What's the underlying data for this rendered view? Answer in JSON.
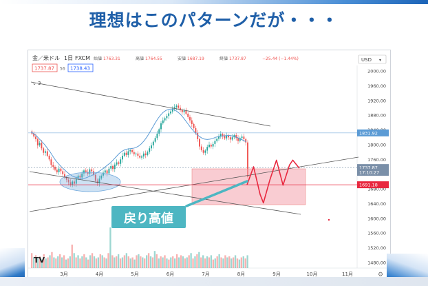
{
  "headline": "理想はこのパターンだが・・・",
  "chart_header": {
    "symbol": "金／米ドル",
    "timeframe": "1日",
    "source": "FXCM",
    "ohlc": [
      {
        "label": "始値",
        "value": "1763.31"
      },
      {
        "label": "高値",
        "value": "1764.55"
      },
      {
        "label": "安値",
        "value": "1687.19"
      },
      {
        "label": "終値",
        "value": "1737.87"
      }
    ],
    "change": "−25.44 (−1.44%)",
    "bid": "1737.87",
    "spread": "56",
    "ask": "1738.43",
    "indicator_label": "3",
    "currency": "USD"
  },
  "annotation": {
    "label": "戻り高値",
    "label_bg": "#4db6c2",
    "box_color": "#f4a3ad",
    "projection_color": "#e8283f"
  },
  "colors": {
    "up_candle": "#26a69a",
    "down_candle": "#ef5350",
    "moving_average": "#5b9bd5",
    "ellipse": "#6fa8dc",
    "trendline": "#555555",
    "price_badge": "#7a8fa8"
  },
  "chart_data": {
    "type": "candlestick",
    "x_tick_labels": [
      "3月",
      "4月",
      "5月",
      "6月",
      "7月",
      "8月",
      "9月",
      "10月",
      "11月"
    ],
    "y_tick_labels": [
      "2000.00",
      "1960.00",
      "1920.00",
      "1880.00",
      "1840.00",
      "1800.00",
      "1760.00",
      "1720.00",
      "1680.00",
      "1640.00",
      "1600.00",
      "1560.00",
      "1520.00",
      "1480.00"
    ],
    "ylim": [
      1465,
      2015
    ],
    "price_labels": [
      {
        "value": "1831.92",
        "price": 1831.92,
        "color": "#5b9bd5"
      },
      {
        "value": "1737.87",
        "price": 1737.87,
        "color": "#7a8fa8"
      },
      {
        "value": "17:10:27",
        "price": 1725,
        "color": "#7a8fa8"
      },
      {
        "value": "1691.18",
        "price": 1691.18,
        "color": "#e8283f"
      }
    ],
    "close_series": [
      1830,
      1822,
      1815,
      1798,
      1805,
      1790,
      1778,
      1782,
      1770,
      1760,
      1745,
      1740,
      1732,
      1725,
      1735,
      1728,
      1720,
      1712,
      1705,
      1698,
      1690,
      1700,
      1694,
      1708,
      1716,
      1711,
      1722,
      1730,
      1726,
      1721,
      1733,
      1728,
      1718,
      1702,
      1695,
      1708,
      1716,
      1724,
      1730,
      1722,
      1735,
      1742,
      1734,
      1746,
      1752,
      1748,
      1760,
      1770,
      1778,
      1772,
      1782,
      1785,
      1780,
      1774,
      1776,
      1770,
      1765,
      1768,
      1776,
      1772,
      1780,
      1790,
      1798,
      1808,
      1818,
      1830,
      1842,
      1858,
      1866,
      1872,
      1878,
      1885,
      1890,
      1898,
      1902,
      1906,
      1900,
      1894,
      1888,
      1892,
      1884,
      1875,
      1866,
      1856,
      1845,
      1832,
      1815,
      1795,
      1785,
      1778,
      1784,
      1794,
      1800,
      1795,
      1802,
      1810,
      1816,
      1823,
      1829,
      1823,
      1817,
      1825,
      1820,
      1814,
      1820,
      1826,
      1818,
      1810,
      1818,
      1822,
      1815,
      1806,
      1712
    ],
    "moving_average": [
      1835,
      1830,
      1824,
      1816,
      1808,
      1800,
      1790,
      1780,
      1768,
      1757,
      1748,
      1740,
      1733,
      1726,
      1720,
      1715,
      1712,
      1710,
      1708,
      1708,
      1710,
      1713,
      1716,
      1720,
      1724,
      1729,
      1734,
      1740,
      1746,
      1752,
      1760,
      1768,
      1776,
      1782,
      1786,
      1788,
      1789,
      1790,
      1792,
      1796,
      1802,
      1810,
      1820,
      1832,
      1845,
      1858,
      1870,
      1880,
      1888,
      1893,
      1896,
      1897,
      1895,
      1890,
      1884,
      1876,
      1866,
      1856,
      1846,
      1837,
      1829,
      1823,
      1818,
      1815,
      1814,
      1815,
      1817,
      1820,
      1822,
      1823,
      1824,
      1825,
      1825,
      1824,
      1822,
      1819,
      1815,
      1812,
      1808
    ],
    "volume_bars": [
      14,
      10,
      12,
      9,
      11,
      8,
      13,
      9,
      10,
      12,
      15,
      10,
      9,
      11,
      13,
      10,
      12,
      8,
      9,
      11,
      22,
      14,
      10,
      12,
      9,
      11,
      13,
      10,
      8,
      12,
      14,
      11,
      9,
      10,
      13,
      12,
      10,
      9,
      14,
      38,
      12,
      10,
      11,
      13,
      9,
      10,
      12,
      14,
      11,
      9,
      10,
      8,
      12,
      13,
      11,
      10,
      9,
      12,
      14,
      11,
      10,
      16,
      13,
      9,
      11,
      10,
      12,
      9,
      8,
      10,
      11,
      9,
      13,
      10,
      12,
      11,
      9,
      10,
      12,
      14,
      9,
      11,
      13,
      15,
      10,
      12,
      9,
      11,
      10,
      12,
      8,
      9,
      11,
      13,
      10,
      9,
      12,
      10,
      11,
      9,
      10,
      12,
      9,
      8,
      10,
      11,
      9,
      12
    ],
    "projection_points": [
      [
        1691,
        0
      ],
      [
        1740,
        1
      ],
      [
        1665,
        2
      ],
      [
        1642,
        2.5
      ],
      [
        1705,
        3.5
      ],
      [
        1758,
        4.5
      ],
      [
        1690,
        5.5
      ],
      [
        1745,
        6.5
      ],
      [
        1758,
        7
      ],
      [
        1736,
        8
      ]
    ]
  }
}
